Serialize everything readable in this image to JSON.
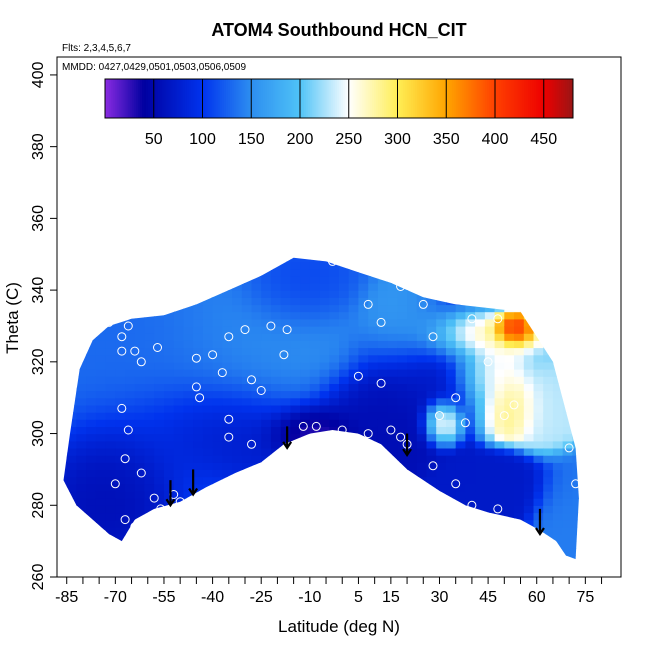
{
  "chart_data": {
    "type": "heatmap",
    "title": "ATOM4 Southbound HCN_CIT",
    "subtitle_flights": "Flts: 2,3,4,5,6,7",
    "subtitle_dates": "MMDD: 0427,0429,0501,0503,0506,0509",
    "xlabel": "Latitude (deg N)",
    "ylabel": "Theta (C)",
    "xlim": [
      -88,
      86
    ],
    "ylim": [
      260,
      405
    ],
    "x_ticks": [
      -85,
      -70,
      -55,
      -40,
      -25,
      -10,
      5,
      15,
      30,
      45,
      60,
      75
    ],
    "x_minor_ticks": [
      -80,
      -75,
      -65,
      -60,
      -50,
      -45,
      -35,
      -30,
      -20,
      -15,
      -5,
      0,
      10,
      20,
      25,
      35,
      40,
      50,
      55,
      65,
      70,
      80
    ],
    "y_ticks": [
      260,
      280,
      300,
      320,
      340,
      360,
      380,
      400
    ],
    "colorbar": {
      "min": 0,
      "max": 480,
      "labels": [
        50,
        100,
        150,
        200,
        250,
        300,
        350,
        400,
        450
      ],
      "stops": [
        {
          "v": 0,
          "c": "#8a2be2"
        },
        {
          "v": 40,
          "c": "#0000a0"
        },
        {
          "v": 100,
          "c": "#0033ee"
        },
        {
          "v": 150,
          "c": "#2d8ef0"
        },
        {
          "v": 200,
          "c": "#4fc3f7"
        },
        {
          "v": 250,
          "c": "#ffffff"
        },
        {
          "v": 300,
          "c": "#ffee55"
        },
        {
          "v": 350,
          "c": "#ffa500"
        },
        {
          "v": 400,
          "c": "#ff4000"
        },
        {
          "v": 450,
          "c": "#ee0000"
        },
        {
          "v": 480,
          "c": "#9a1515"
        }
      ]
    },
    "field_outline": [
      [
        -86,
        287
      ],
      [
        -84,
        300
      ],
      [
        -81,
        318
      ],
      [
        -77,
        326
      ],
      [
        -72,
        330
      ],
      [
        -65,
        332
      ],
      [
        -55,
        333
      ],
      [
        -45,
        336
      ],
      [
        -35,
        340
      ],
      [
        -25,
        344
      ],
      [
        -15,
        349
      ],
      [
        -5,
        348
      ],
      [
        5,
        345
      ],
      [
        15,
        342
      ],
      [
        25,
        338
      ],
      [
        35,
        336
      ],
      [
        45,
        335
      ],
      [
        55,
        334
      ],
      [
        65,
        320
      ],
      [
        72,
        296
      ],
      [
        73,
        282
      ],
      [
        72,
        265
      ],
      [
        69,
        266
      ],
      [
        66,
        270
      ],
      [
        61,
        273
      ],
      [
        55,
        276
      ],
      [
        45,
        278
      ],
      [
        38,
        280
      ],
      [
        30,
        284
      ],
      [
        20,
        290
      ],
      [
        12,
        297
      ],
      [
        5,
        300
      ],
      [
        -3,
        301
      ],
      [
        -10,
        300
      ],
      [
        -18,
        297
      ],
      [
        -25,
        292
      ],
      [
        -33,
        289
      ],
      [
        -42,
        285
      ],
      [
        -50,
        281
      ],
      [
        -58,
        279
      ],
      [
        -64,
        276
      ],
      [
        -68,
        270
      ],
      [
        -72,
        272
      ],
      [
        -77,
        276
      ],
      [
        -82,
        280
      ]
    ],
    "blobs": [
      {
        "x": -60,
        "y": 315,
        "v": 130,
        "sx": 28,
        "sy": 22
      },
      {
        "x": -25,
        "y": 325,
        "v": 150,
        "sx": 22,
        "sy": 16
      },
      {
        "x": -15,
        "y": 340,
        "v": 105,
        "sx": 12,
        "sy": 8
      },
      {
        "x": -40,
        "y": 302,
        "v": 60,
        "sx": 22,
        "sy": 10
      },
      {
        "x": -70,
        "y": 290,
        "v": 50,
        "sx": 14,
        "sy": 12
      },
      {
        "x": -10,
        "y": 301,
        "v": 15,
        "sx": 10,
        "sy": 5
      },
      {
        "x": 10,
        "y": 305,
        "v": 55,
        "sx": 14,
        "sy": 9
      },
      {
        "x": 30,
        "y": 320,
        "v": 70,
        "sx": 16,
        "sy": 12
      },
      {
        "x": 20,
        "y": 330,
        "v": 170,
        "sx": 10,
        "sy": 8
      },
      {
        "x": 40,
        "y": 327,
        "v": 330,
        "sx": 12,
        "sy": 5
      },
      {
        "x": 52,
        "y": 329,
        "v": 440,
        "sx": 4,
        "sy": 3
      },
      {
        "x": 45,
        "y": 318,
        "v": 300,
        "sx": 8,
        "sy": 7
      },
      {
        "x": 52,
        "y": 308,
        "v": 290,
        "sx": 7,
        "sy": 6
      },
      {
        "x": 31,
        "y": 304,
        "v": 280,
        "sx": 4,
        "sy": 4
      },
      {
        "x": 62,
        "y": 308,
        "v": 230,
        "sx": 6,
        "sy": 8
      },
      {
        "x": 48,
        "y": 285,
        "v": 70,
        "sx": 12,
        "sy": 6
      },
      {
        "x": 68,
        "y": 280,
        "v": 140,
        "sx": 6,
        "sy": 8
      }
    ],
    "points": [
      [
        -72,
        331
      ],
      [
        -68,
        327
      ],
      [
        -66,
        330
      ],
      [
        -64,
        323
      ],
      [
        -62,
        320
      ],
      [
        -68,
        323
      ],
      [
        -72,
        332
      ],
      [
        -57,
        324
      ],
      [
        -48,
        337
      ],
      [
        -40,
        322
      ],
      [
        -45,
        321
      ],
      [
        -45,
        313
      ],
      [
        -44,
        310
      ],
      [
        -37,
        317
      ],
      [
        -35,
        304
      ],
      [
        -35,
        327
      ],
      [
        -30,
        329
      ],
      [
        -28,
        315
      ],
      [
        -25,
        312
      ],
      [
        -22,
        330
      ],
      [
        -18,
        322
      ],
      [
        -17,
        329
      ],
      [
        -8,
        302
      ],
      [
        -3,
        348
      ],
      [
        2,
        349
      ],
      [
        5,
        316
      ],
      [
        8,
        336
      ],
      [
        12,
        314
      ],
      [
        12,
        331
      ],
      [
        15,
        301
      ],
      [
        18,
        299
      ],
      [
        18,
        341
      ],
      [
        25,
        336
      ],
      [
        28,
        327
      ],
      [
        30,
        305
      ],
      [
        35,
        310
      ],
      [
        38,
        303
      ],
      [
        40,
        332
      ],
      [
        45,
        320
      ],
      [
        48,
        332
      ],
      [
        50,
        305
      ],
      [
        53,
        308
      ],
      [
        57,
        334
      ],
      [
        -70,
        286
      ],
      [
        -67,
        276
      ],
      [
        -64,
        274
      ],
      [
        -62,
        289
      ],
      [
        -58,
        282
      ],
      [
        -56,
        279
      ],
      [
        -55,
        277
      ],
      [
        -52,
        283
      ],
      [
        -50,
        281
      ],
      [
        -67,
        293
      ],
      [
        -66,
        301
      ],
      [
        -68,
        307
      ],
      [
        -74,
        272
      ],
      [
        -70,
        267
      ],
      [
        -35,
        299
      ],
      [
        -28,
        297
      ],
      [
        -12,
        302
      ],
      [
        0,
        301
      ],
      [
        8,
        300
      ],
      [
        20,
        297
      ],
      [
        28,
        291
      ],
      [
        35,
        286
      ],
      [
        40,
        280
      ],
      [
        48,
        279
      ],
      [
        60,
        271
      ],
      [
        70,
        296
      ],
      [
        72,
        286
      ]
    ],
    "arrows": [
      {
        "x": -53,
        "y_top": 287,
        "y_bottom": 280
      },
      {
        "x": -46,
        "y_top": 290,
        "y_bottom": 283
      },
      {
        "x": -17,
        "y_top": 302,
        "y_bottom": 296
      },
      {
        "x": 20,
        "y_top": 300,
        "y_bottom": 294
      },
      {
        "x": 61,
        "y_top": 279,
        "y_bottom": 272
      }
    ]
  }
}
